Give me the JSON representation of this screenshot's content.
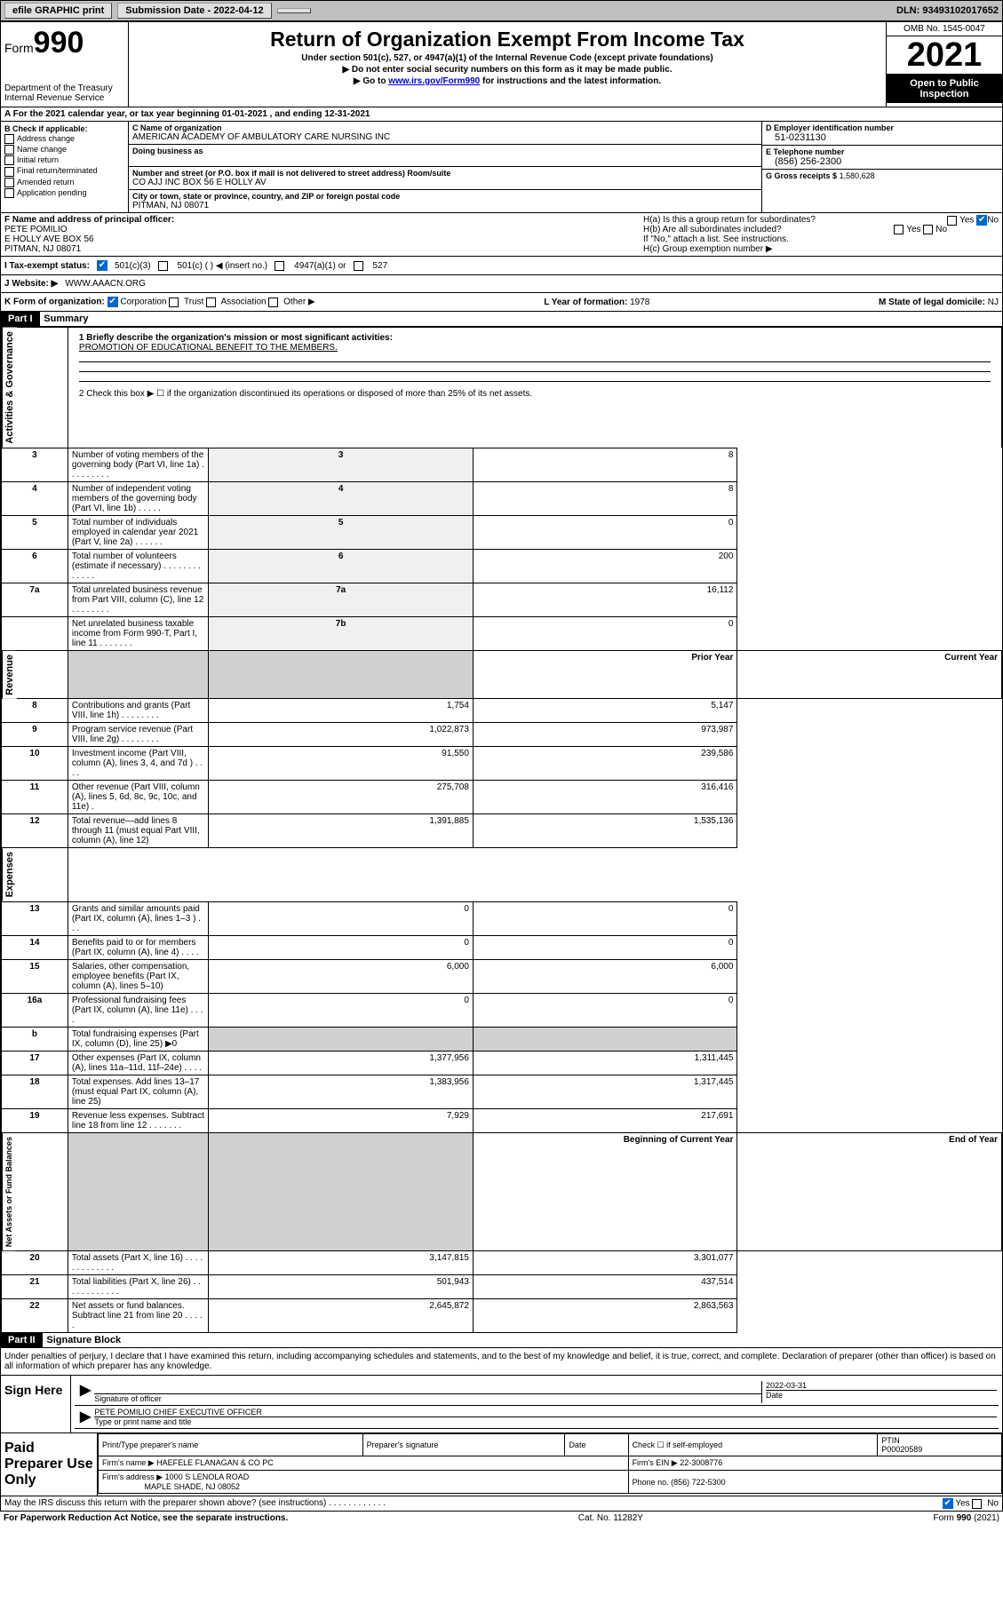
{
  "topbar": {
    "efile": "efile GRAPHIC print",
    "submission_label": "Submission Date - 2022-04-12",
    "dln": "DLN: 93493102017652"
  },
  "header": {
    "form_prefix": "Form",
    "form_no": "990",
    "dept": "Department of the Treasury",
    "irs": "Internal Revenue Service",
    "title": "Return of Organization Exempt From Income Tax",
    "sub1": "Under section 501(c), 527, or 4947(a)(1) of the Internal Revenue Code (except private foundations)",
    "sub2": "▶ Do not enter social security numbers on this form as it may be made public.",
    "sub3_pre": "▶ Go to ",
    "sub3_link": "www.irs.gov/Form990",
    "sub3_post": " for instructions and the latest information.",
    "omb": "OMB No. 1545-0047",
    "year": "2021",
    "inspect1": "Open to Public",
    "inspect2": "Inspection"
  },
  "rowA": "A For the 2021 calendar year, or tax year beginning 01-01-2021   , and ending 12-31-2021",
  "colB": {
    "title": "B Check if applicable:",
    "i1": "Address change",
    "i2": "Name change",
    "i3": "Initial return",
    "i4": "Final return/terminated",
    "i5": "Amended return",
    "i6": "Application pending"
  },
  "colC": {
    "name_label": "C Name of organization",
    "name_val": "AMERICAN ACADEMY OF AMBULATORY CARE NURSING INC",
    "dba_label": "Doing business as",
    "street_label": "Number and street (or P.O. box if mail is not delivered to street address)    Room/suite",
    "street_val": "CO AJJ INC BOX 56 E HOLLY AV",
    "city_label": "City or town, state or province, country, and ZIP or foreign postal code",
    "city_val": "PITMAN, NJ  08071"
  },
  "colD": {
    "ein_label": "D Employer identification number",
    "ein_val": "51-0231130",
    "tel_label": "E Telephone number",
    "tel_val": "(856) 256-2300",
    "gross_label": "G Gross receipts $",
    "gross_val": "1,580,628"
  },
  "rowF": {
    "label": "F Name and address of principal officer:",
    "name": "PETE POMILIO",
    "addr1": "E HOLLY AVE BOX 56",
    "addr2": "PITMAN, NJ  08071"
  },
  "rowH": {
    "ha": "H(a)  Is this a group return for subordinates?",
    "hb": "H(b)  Are all subordinates included?",
    "yes": "Yes",
    "no": "No",
    "note": "If \"No,\" attach a list. See instructions.",
    "hc": "H(c)  Group exemption number ▶"
  },
  "rowI": {
    "label": "I   Tax-exempt status:",
    "o1": "501(c)(3)",
    "o2": "501(c) (   ) ◀ (insert no.)",
    "o3": "4947(a)(1) or",
    "o4": "527"
  },
  "rowJ": {
    "label": "J   Website: ▶",
    "val": "WWW.AAACN.ORG"
  },
  "rowK": {
    "label": "K Form of organization:",
    "o1": "Corporation",
    "o2": "Trust",
    "o3": "Association",
    "o4": "Other ▶",
    "l_label": "L Year of formation:",
    "l_val": "1978",
    "m_label": "M State of legal domicile:",
    "m_val": "NJ"
  },
  "part1": {
    "hdr": "Part I",
    "title": "Summary",
    "l1_label": "1  Briefly describe the organization's mission or most significant activities:",
    "l1_val": "PROMOTION OF EDUCATIONAL BENEFIT TO THE MEMBERS.",
    "l2": "2   Check this box ▶ ☐  if the organization discontinued its operations or disposed of more than 25% of its net assets.",
    "side_ag": "Activities & Governance",
    "side_rev": "Revenue",
    "side_exp": "Expenses",
    "side_na": "Net Assets or Fund Balances",
    "col_prior": "Prior Year",
    "col_curr": "Current Year",
    "col_beg": "Beginning of Current Year",
    "col_end": "End of Year",
    "rows_ag": [
      {
        "n": "3",
        "d": "Number of voting members of the governing body (Part VI, line 1a)   .   .   .   .   .   .   .   .   .",
        "b": "3",
        "v": "8"
      },
      {
        "n": "4",
        "d": "Number of independent voting members of the governing body (Part VI, line 1b)   .   .   .   .   .",
        "b": "4",
        "v": "8"
      },
      {
        "n": "5",
        "d": "Total number of individuals employed in calendar year 2021 (Part V, line 2a)   .   .   .   .   .   .",
        "b": "5",
        "v": "0"
      },
      {
        "n": "6",
        "d": "Total number of volunteers (estimate if necessary)   .   .   .   .   .   .   .   .   .   .   .   .   .",
        "b": "6",
        "v": "200"
      },
      {
        "n": "7a",
        "d": "Total unrelated business revenue from Part VIII, column (C), line 12   .   .   .   .   .   .   .   .",
        "b": "7a",
        "v": "16,112"
      },
      {
        "n": "",
        "d": "Net unrelated business taxable income from Form 990-T, Part I, line 11   .   .   .   .   .   .   .",
        "b": "7b",
        "v": "0"
      }
    ],
    "rows_rev": [
      {
        "n": "8",
        "d": "Contributions and grants (Part VIII, line 1h)   .   .   .   .   .   .   .   .",
        "p": "1,754",
        "c": "5,147"
      },
      {
        "n": "9",
        "d": "Program service revenue (Part VIII, line 2g)   .   .   .   .   .   .   .   .",
        "p": "1,022,873",
        "c": "973,987"
      },
      {
        "n": "10",
        "d": "Investment income (Part VIII, column (A), lines 3, 4, and 7d )   .   .   .   .",
        "p": "91,550",
        "c": "239,586"
      },
      {
        "n": "11",
        "d": "Other revenue (Part VIII, column (A), lines 5, 6d, 8c, 9c, 10c, and 11e)   .",
        "p": "275,708",
        "c": "316,416"
      },
      {
        "n": "12",
        "d": "Total revenue—add lines 8 through 11 (must equal Part VIII, column (A), line 12)",
        "p": "1,391,885",
        "c": "1,535,136"
      }
    ],
    "rows_exp": [
      {
        "n": "13",
        "d": "Grants and similar amounts paid (Part IX, column (A), lines 1–3 )   .   .   .",
        "p": "0",
        "c": "0"
      },
      {
        "n": "14",
        "d": "Benefits paid to or for members (Part IX, column (A), line 4)   .   .   .   .",
        "p": "0",
        "c": "0"
      },
      {
        "n": "15",
        "d": "Salaries, other compensation, employee benefits (Part IX, column (A), lines 5–10)",
        "p": "6,000",
        "c": "6,000"
      },
      {
        "n": "16a",
        "d": "Professional fundraising fees (Part IX, column (A), line 11e)   .   .   .   .",
        "p": "0",
        "c": "0"
      },
      {
        "n": "b",
        "d": "Total fundraising expenses (Part IX, column (D), line 25) ▶0",
        "p": "",
        "c": "",
        "shade": true
      },
      {
        "n": "17",
        "d": "Other expenses (Part IX, column (A), lines 11a–11d, 11f–24e)   .   .   .   .",
        "p": "1,377,956",
        "c": "1,311,445"
      },
      {
        "n": "18",
        "d": "Total expenses. Add lines 13–17 (must equal Part IX, column (A), line 25)",
        "p": "1,383,956",
        "c": "1,317,445"
      },
      {
        "n": "19",
        "d": "Revenue less expenses. Subtract line 18 from line 12   .   .   .   .   .   .   .",
        "p": "7,929",
        "c": "217,691"
      }
    ],
    "rows_na": [
      {
        "n": "20",
        "d": "Total assets (Part X, line 16)   .   .   .   .   .   .   .   .   .   .   .   .   .",
        "p": "3,147,815",
        "c": "3,301,077"
      },
      {
        "n": "21",
        "d": "Total liabilities (Part X, line 26)   .   .   .   .   .   .   .   .   .   .   .   .",
        "p": "501,943",
        "c": "437,514"
      },
      {
        "n": "22",
        "d": "Net assets or fund balances. Subtract line 21 from line 20   .   .   .   .   .",
        "p": "2,645,872",
        "c": "2,863,563"
      }
    ]
  },
  "part2": {
    "hdr": "Part II",
    "title": "Signature Block",
    "decl": "Under penalties of perjury, I declare that I have examined this return, including accompanying schedules and statements, and to the best of my knowledge and belief, it is true, correct, and complete. Declaration of preparer (other than officer) is based on all information of which preparer has any knowledge.",
    "sign": "Sign Here",
    "sig_officer": "Signature of officer",
    "date": "Date",
    "date_val": "2022-03-31",
    "name_title": "PETE POMILIO  CHIEF EXECUTIVE OFFICER",
    "type_label": "Type or print name and title",
    "paid": "Paid Preparer Use Only",
    "prep_name": "Print/Type preparer's name",
    "prep_sig": "Preparer's signature",
    "prep_date": "Date",
    "check_se": "Check ☐ if self-employed",
    "ptin_label": "PTIN",
    "ptin_val": "P00020589",
    "firm_name_l": "Firm's name    ▶",
    "firm_name": "HAEFELE FLANAGAN & CO PC",
    "firm_ein_l": "Firm's EIN ▶",
    "firm_ein": "22-3008776",
    "firm_addr_l": "Firm's address ▶",
    "firm_addr1": "1000 S LENOLA ROAD",
    "firm_addr2": "MAPLE SHADE, NJ  08052",
    "phone_l": "Phone no.",
    "phone": "(856) 722-5300",
    "discuss": "May the IRS discuss this return with the preparer shown above? (see instructions)   .   .   .   .   .   .   .   .   .   .   .   .",
    "d_yes": "Yes",
    "d_no": "No"
  },
  "footer": {
    "pra": "For Paperwork Reduction Act Notice, see the separate instructions.",
    "cat": "Cat. No. 11282Y",
    "form": "Form 990 (2021)"
  }
}
